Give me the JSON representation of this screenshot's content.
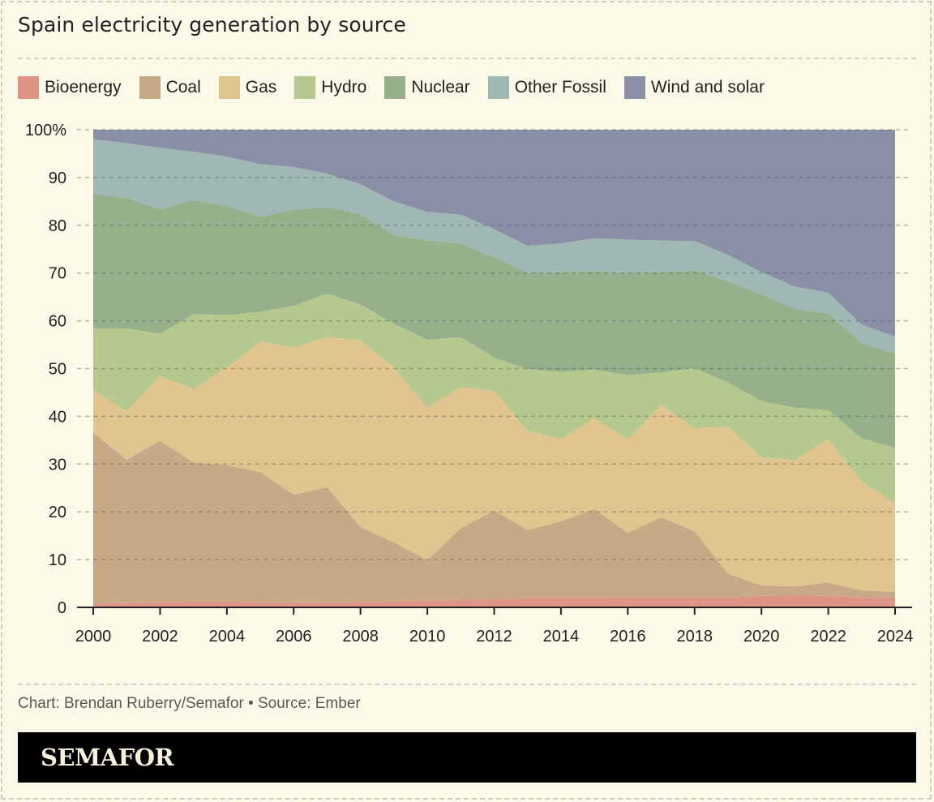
{
  "title": "Spain electricity generation by source",
  "source": "Chart: Brendan Ruberry/Semafor • Source: Ember",
  "brand": "SEMAFOR",
  "legend": [
    {
      "label": "Bioenergy",
      "color": "#de9585"
    },
    {
      "label": "Coal",
      "color": "#c7a987"
    },
    {
      "label": "Gas",
      "color": "#e1c58f"
    },
    {
      "label": "Hydro",
      "color": "#b5c98f"
    },
    {
      "label": "Nuclear",
      "color": "#96b08b"
    },
    {
      "label": "Other Fossil",
      "color": "#9fb8b4"
    },
    {
      "label": "Wind and solar",
      "color": "#8a8fa5"
    }
  ],
  "chart_data": {
    "type": "area",
    "stacked": true,
    "title": "Spain electricity generation by source",
    "xlabel": "",
    "ylabel": "",
    "x": [
      2000,
      2001,
      2002,
      2003,
      2004,
      2005,
      2006,
      2007,
      2008,
      2009,
      2010,
      2011,
      2012,
      2013,
      2014,
      2015,
      2016,
      2017,
      2018,
      2019,
      2020,
      2021,
      2022,
      2023,
      2024
    ],
    "x_ticks": [
      "2000",
      "2002",
      "2004",
      "2006",
      "2008",
      "2010",
      "2012",
      "2014",
      "2016",
      "2018",
      "2020",
      "2022",
      "2024"
    ],
    "y_ticks": [
      "0",
      "10",
      "20",
      "30",
      "40",
      "50",
      "60",
      "70",
      "80",
      "90",
      "100%"
    ],
    "ylim": [
      0,
      100
    ],
    "grid": true,
    "legend_position": "top",
    "series": [
      {
        "name": "Bioenergy",
        "values": [
          0.8,
          0.9,
          1.1,
          1.2,
          1.2,
          1.1,
          1.0,
          1.0,
          1.1,
          1.2,
          1.4,
          1.6,
          1.7,
          2.0,
          2.0,
          2.0,
          2.1,
          2.1,
          2.1,
          2.1,
          2.4,
          2.5,
          2.4,
          2.1,
          2.1
        ]
      },
      {
        "name": "Coal",
        "values": [
          35.8,
          30.0,
          33.8,
          29.1,
          28.6,
          27.2,
          22.6,
          24.2,
          15.7,
          12.4,
          8.5,
          15.0,
          18.6,
          14.2,
          16.0,
          18.6,
          13.5,
          16.8,
          13.8,
          4.9,
          2.2,
          1.9,
          2.8,
          1.4,
          1.2
        ]
      },
      {
        "name": "Gas",
        "values": [
          8.9,
          10.1,
          13.5,
          15.4,
          20.4,
          27.3,
          30.8,
          31.4,
          39.1,
          36.6,
          31.9,
          29.5,
          25.0,
          20.8,
          17.2,
          19.0,
          19.5,
          23.5,
          21.6,
          30.8,
          26.8,
          26.4,
          30.0,
          22.8,
          18.5
        ]
      },
      {
        "name": "Hydro",
        "values": [
          12.9,
          17.4,
          8.9,
          15.7,
          11.0,
          6.3,
          8.7,
          9.1,
          7.5,
          9.2,
          14.2,
          10.5,
          7.0,
          12.9,
          14.1,
          10.2,
          13.5,
          6.8,
          12.6,
          9.3,
          11.8,
          11.0,
          6.1,
          9.1,
          11.6
        ]
      },
      {
        "name": "Nuclear",
        "values": [
          28.2,
          27.3,
          26.1,
          23.9,
          22.9,
          19.9,
          20.2,
          18.1,
          18.9,
          18.5,
          20.8,
          19.6,
          21.0,
          20.1,
          20.9,
          20.5,
          21.5,
          21.0,
          20.4,
          21.2,
          22.4,
          20.7,
          20.2,
          19.9,
          19.8
        ]
      },
      {
        "name": "Other Fossil",
        "values": [
          11.4,
          11.5,
          12.8,
          10.1,
          10.3,
          11.0,
          8.9,
          7.0,
          6.3,
          7.1,
          6.0,
          6.0,
          5.9,
          5.7,
          6.0,
          7.0,
          6.9,
          6.6,
          6.2,
          5.5,
          4.6,
          4.7,
          4.4,
          3.9,
          3.5
        ]
      },
      {
        "name": "Wind and solar",
        "values": [
          2.0,
          2.8,
          3.8,
          4.6,
          5.6,
          7.2,
          7.8,
          9.2,
          11.4,
          15.0,
          17.2,
          17.8,
          20.8,
          24.3,
          23.8,
          22.7,
          23.0,
          23.2,
          23.3,
          26.2,
          29.8,
          32.8,
          34.1,
          40.8,
          43.3
        ]
      }
    ]
  }
}
